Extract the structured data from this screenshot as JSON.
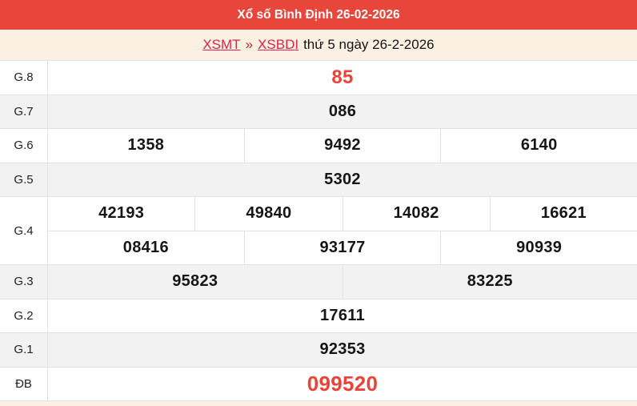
{
  "header": {
    "title": "Xổ số Bình Định 26-02-2026"
  },
  "breadcrumb": {
    "links": [
      "XSMT",
      "XSBDI"
    ],
    "separator": "»",
    "date_text": "thứ 5 ngày 26-2-2026"
  },
  "results": {
    "rows": [
      {
        "label": "G.8",
        "highlight": true,
        "groups": [
          [
            "85"
          ]
        ]
      },
      {
        "label": "G.7",
        "highlight": false,
        "groups": [
          [
            "086"
          ]
        ]
      },
      {
        "label": "G.6",
        "highlight": false,
        "groups": [
          [
            "1358",
            "9492",
            "6140"
          ]
        ]
      },
      {
        "label": "G.5",
        "highlight": false,
        "groups": [
          [
            "5302"
          ]
        ]
      },
      {
        "label": "G.4",
        "highlight": false,
        "groups": [
          [
            "42193",
            "49840",
            "14082",
            "16621"
          ],
          [
            "08416",
            "93177",
            "90939"
          ]
        ]
      },
      {
        "label": "G.3",
        "highlight": false,
        "groups": [
          [
            "95823",
            "83225"
          ]
        ]
      },
      {
        "label": "G.2",
        "highlight": false,
        "groups": [
          [
            "17611"
          ]
        ]
      },
      {
        "label": "G.1",
        "highlight": false,
        "groups": [
          [
            "92353"
          ]
        ]
      },
      {
        "label": "ĐB",
        "highlight": true,
        "groups": [
          [
            "099520"
          ]
        ]
      }
    ]
  },
  "colors": {
    "page_bg": "#fbf0e2",
    "header_bg": "#e8463b",
    "highlight_color": "#e94437",
    "link_color": "#dc2348",
    "separator_color": "#a03333",
    "row_alt_bg": "#f2f2f2",
    "border_color": "#e2e2e2"
  }
}
